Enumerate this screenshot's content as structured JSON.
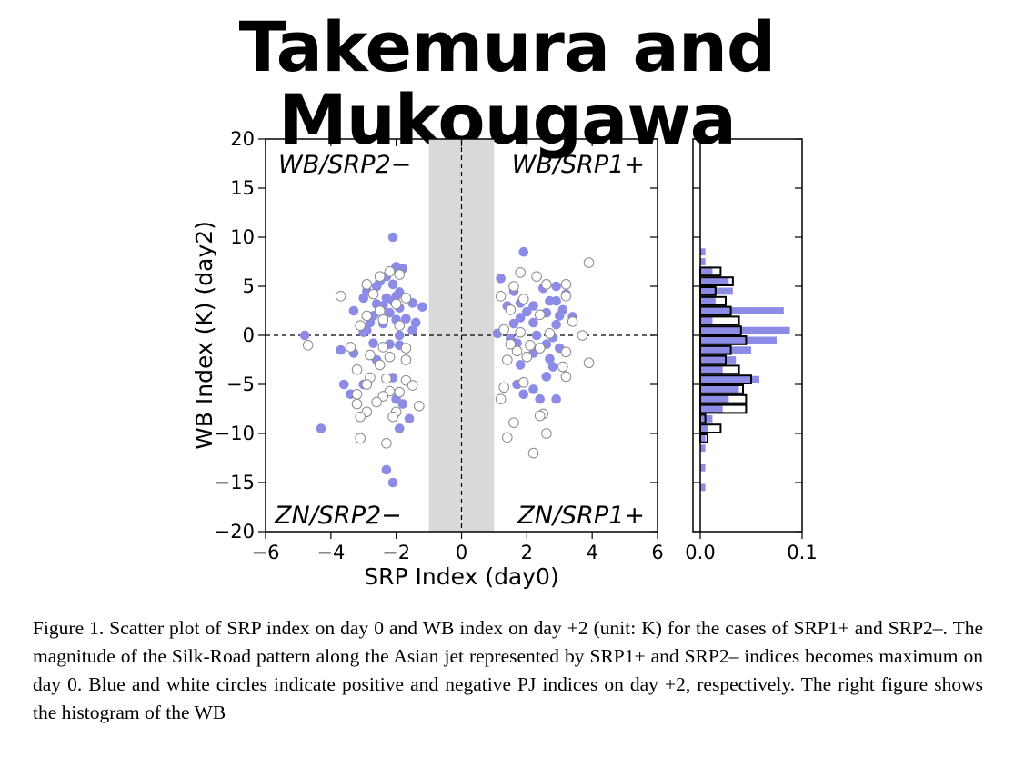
{
  "slide_title": "Takemura and Mukougawa",
  "caption": "Figure 1. Scatter plot of SRP index on day 0 and WB index on day +2 (unit: K) for the cases of SRP1+ and SRP2–. The magnitude of the Silk-Road pattern along the Asian jet represented by SRP1+ and SRP2– indices becomes maximum on day 0. Blue and white circles indicate positive and negative PJ indices on day +2, respectively. The right figure shows the histogram of the WB",
  "colors": {
    "blue": "#8c8ce6",
    "shade": "#d9d9d9",
    "ink": "#000000"
  },
  "chart_data": [
    {
      "type": "scatter",
      "xlabel": "SRP Index (day0)",
      "ylabel": "WB Index (K) (day2)",
      "xlim": [
        -6,
        6
      ],
      "ylim": [
        -20,
        20
      ],
      "xticks": [
        -6,
        -4,
        -2,
        0,
        2,
        4,
        6
      ],
      "xtick_labels": [
        "−6",
        "−4",
        "−2",
        "0",
        "2",
        "4",
        "6"
      ],
      "yticks": [
        -20,
        -15,
        -10,
        -5,
        0,
        5,
        10,
        15,
        20
      ],
      "ytick_labels": [
        "−20",
        "−15",
        "−10",
        "−5",
        "0",
        "5",
        "10",
        "15",
        "20"
      ],
      "shaded_band_x": [
        -1,
        1
      ],
      "zero_lines": true,
      "quadrant_labels": {
        "top_left": "WB/SRP2−",
        "top_right": "WB/SRP1+",
        "bottom_left": "ZN/SRP2−",
        "bottom_right": "ZN/SRP1+"
      },
      "series": [
        {
          "marker": "filled-blue",
          "points": [
            [
              -2.1,
              10.0
            ],
            [
              -2.0,
              7.0
            ],
            [
              -1.8,
              6.8
            ],
            [
              -2.3,
              6.0
            ],
            [
              -2.5,
              5.5
            ],
            [
              -2.1,
              5.2
            ],
            [
              -2.6,
              5.0
            ],
            [
              -2.9,
              4.5
            ],
            [
              -1.9,
              4.4
            ],
            [
              -2.0,
              4.0
            ],
            [
              -2.3,
              3.8
            ],
            [
              -3.0,
              3.8
            ],
            [
              -2.6,
              3.2
            ],
            [
              -2.1,
              3.5
            ],
            [
              -1.5,
              3.3
            ],
            [
              -2.4,
              3.0
            ],
            [
              -1.9,
              2.8
            ],
            [
              -1.2,
              2.9
            ],
            [
              -2.2,
              2.3
            ],
            [
              -3.3,
              2.5
            ],
            [
              -2.7,
              2.0
            ],
            [
              -1.7,
              1.7
            ],
            [
              -2.0,
              1.6
            ],
            [
              -2.8,
              1.3
            ],
            [
              -1.4,
              1.3
            ],
            [
              -2.4,
              1.2
            ],
            [
              -2.9,
              0.5
            ],
            [
              -3.0,
              0.3
            ],
            [
              -1.9,
              0.0
            ],
            [
              -1.5,
              0.5
            ],
            [
              -4.8,
              0.0
            ],
            [
              -2.7,
              -0.8
            ],
            [
              -2.2,
              -0.9
            ],
            [
              -3.7,
              -1.5
            ],
            [
              -3.3,
              -1.8
            ],
            [
              -1.9,
              -1.0
            ],
            [
              -2.6,
              -2.5
            ],
            [
              -2.1,
              -4.3
            ],
            [
              -3.0,
              -5.0
            ],
            [
              -3.6,
              -5.0
            ],
            [
              -3.4,
              -6.0
            ],
            [
              -2.0,
              -6.5
            ],
            [
              -1.8,
              -7.0
            ],
            [
              -1.6,
              -8.5
            ],
            [
              -1.9,
              -9.5
            ],
            [
              -4.3,
              -9.5
            ],
            [
              -2.3,
              -13.7
            ],
            [
              -2.1,
              -15.0
            ],
            [
              1.9,
              8.5
            ],
            [
              1.2,
              5.8
            ],
            [
              2.9,
              5.0
            ],
            [
              1.6,
              4.5
            ],
            [
              2.5,
              4.8
            ],
            [
              3.2,
              4.2
            ],
            [
              2.7,
              3.5
            ],
            [
              1.8,
              3.3
            ],
            [
              2.9,
              3.5
            ],
            [
              1.4,
              3.0
            ],
            [
              2.2,
              3.0
            ],
            [
              3.1,
              2.6
            ],
            [
              2.0,
              2.4
            ],
            [
              2.6,
              2.3
            ],
            [
              3.0,
              2.0
            ],
            [
              1.8,
              1.8
            ],
            [
              3.4,
              1.9
            ],
            [
              1.6,
              1.2
            ],
            [
              2.2,
              1.3
            ],
            [
              2.9,
              1.1
            ],
            [
              1.1,
              0.2
            ],
            [
              2.3,
              0.0
            ],
            [
              1.5,
              -0.3
            ],
            [
              2.8,
              -0.2
            ],
            [
              1.7,
              -0.8
            ],
            [
              2.6,
              -0.9
            ],
            [
              3.0,
              -1.3
            ],
            [
              2.2,
              -1.8
            ],
            [
              2.7,
              -2.4
            ],
            [
              1.8,
              -3.0
            ],
            [
              2.8,
              -3.2
            ],
            [
              2.6,
              -4.2
            ],
            [
              1.7,
              -5.0
            ],
            [
              2.2,
              -5.5
            ],
            [
              1.9,
              -6.0
            ],
            [
              2.4,
              -6.5
            ],
            [
              2.9,
              -6.5
            ]
          ]
        },
        {
          "marker": "open-white",
          "points": [
            [
              -2.2,
              6.5
            ],
            [
              -1.9,
              6.2
            ],
            [
              -2.5,
              6.0
            ],
            [
              -2.9,
              5.2
            ],
            [
              -3.7,
              4.0
            ],
            [
              -2.7,
              4.2
            ],
            [
              -1.7,
              3.8
            ],
            [
              -2.0,
              3.2
            ],
            [
              -2.5,
              2.5
            ],
            [
              -2.9,
              2.0
            ],
            [
              -2.4,
              1.6
            ],
            [
              -1.9,
              1.0
            ],
            [
              -3.1,
              1.0
            ],
            [
              -4.7,
              -1.0
            ],
            [
              -3.4,
              -1.2
            ],
            [
              -1.7,
              -1.3
            ],
            [
              -2.4,
              -1.2
            ],
            [
              -2.8,
              -2.0
            ],
            [
              -2.2,
              -2.2
            ],
            [
              -1.7,
              -2.5
            ],
            [
              -2.5,
              -3.0
            ],
            [
              -3.2,
              -3.5
            ],
            [
              -2.8,
              -4.3
            ],
            [
              -2.3,
              -4.4
            ],
            [
              -1.7,
              -4.6
            ],
            [
              -2.9,
              -5.0
            ],
            [
              -1.5,
              -5.1
            ],
            [
              -2.2,
              -5.7
            ],
            [
              -3.2,
              -6.0
            ],
            [
              -2.4,
              -6.2
            ],
            [
              -1.9,
              -5.8
            ],
            [
              -2.6,
              -6.8
            ],
            [
              -1.3,
              -7.2
            ],
            [
              -3.2,
              -7.0
            ],
            [
              -2.9,
              -7.8
            ],
            [
              -2.0,
              -7.8
            ],
            [
              -3.1,
              -8.3
            ],
            [
              -2.1,
              -8.3
            ],
            [
              -3.1,
              -10.5
            ],
            [
              -2.3,
              -11.0
            ],
            [
              1.8,
              6.4
            ],
            [
              2.3,
              6.0
            ],
            [
              3.2,
              5.2
            ],
            [
              1.6,
              5.0
            ],
            [
              2.6,
              5.2
            ],
            [
              3.9,
              7.4
            ],
            [
              1.2,
              4.0
            ],
            [
              1.9,
              3.7
            ],
            [
              3.2,
              4.0
            ],
            [
              1.5,
              2.6
            ],
            [
              2.4,
              2.1
            ],
            [
              3.4,
              1.4
            ],
            [
              1.3,
              0.6
            ],
            [
              1.8,
              0.3
            ],
            [
              2.7,
              0.2
            ],
            [
              3.7,
              0.0
            ],
            [
              1.5,
              -0.9
            ],
            [
              2.1,
              -1.0
            ],
            [
              2.4,
              -1.3
            ],
            [
              1.7,
              -1.6
            ],
            [
              3.2,
              -1.7
            ],
            [
              2.0,
              -2.2
            ],
            [
              1.4,
              -2.5
            ],
            [
              3.1,
              -3.2
            ],
            [
              3.2,
              -4.2
            ],
            [
              1.9,
              -4.8
            ],
            [
              1.3,
              -5.3
            ],
            [
              3.9,
              -2.8
            ],
            [
              1.2,
              -6.5
            ],
            [
              2.5,
              -8.0
            ],
            [
              1.6,
              -8.9
            ],
            [
              2.4,
              -8.2
            ],
            [
              1.4,
              -10.4
            ],
            [
              2.6,
              -10.0
            ],
            [
              2.2,
              -12.0
            ]
          ]
        }
      ]
    },
    {
      "type": "bar",
      "orientation": "horizontal",
      "xlim": [
        0,
        0.1
      ],
      "xticks": [
        0,
        0.1
      ],
      "xtick_labels": [
        "0.0",
        "0.1"
      ],
      "ylim": [
        -20,
        20
      ],
      "bin_width": 1,
      "bins": [
        8,
        7,
        6,
        5,
        4,
        3,
        2,
        1,
        0,
        -1,
        -2,
        -3,
        -4,
        -5,
        -6,
        -7,
        -8,
        -9,
        -10,
        -11,
        -12,
        -13,
        -14,
        -15,
        -16
      ],
      "series": [
        {
          "marker": "filled-blue",
          "values": [
            0.005,
            0.005,
            0.012,
            0.028,
            0.032,
            0.015,
            0.082,
            0.012,
            0.088,
            0.075,
            0.05,
            0.035,
            0.022,
            0.058,
            0.038,
            0.028,
            0.022,
            0.012,
            0.008,
            0.005,
            0.005,
            0,
            0.005,
            0,
            0.005
          ]
        },
        {
          "marker": "open-black-outline",
          "values": [
            0,
            0,
            0.02,
            0.032,
            0.015,
            0.025,
            0.03,
            0.038,
            0.04,
            0.045,
            0.03,
            0.025,
            0.038,
            0.05,
            0.042,
            0.045,
            0.045,
            0.005,
            0.02,
            0.007,
            0,
            0,
            0,
            0,
            0
          ]
        }
      ]
    }
  ]
}
